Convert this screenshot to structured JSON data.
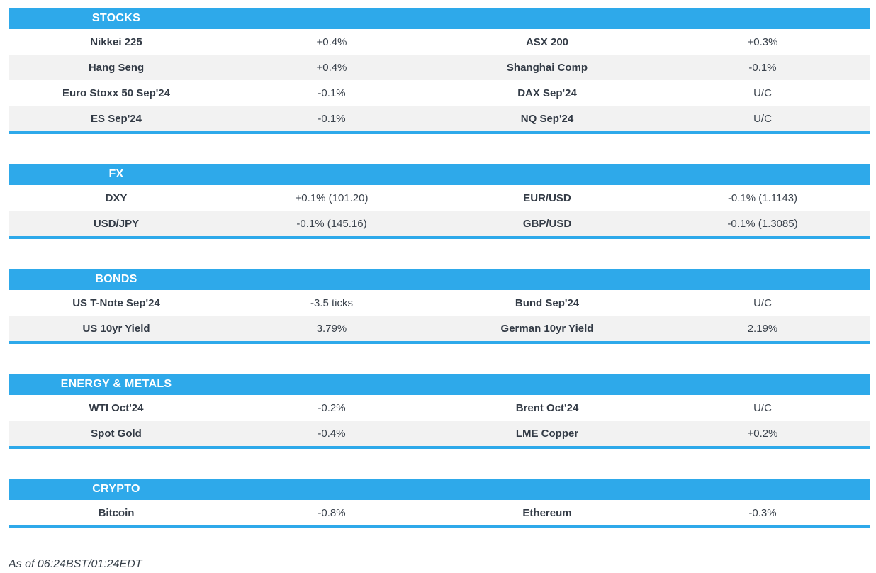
{
  "colors": {
    "accent": "#2ea9ea",
    "stripe": "#f2f2f2",
    "header_text": "#ffffff",
    "body_text": "#333b46"
  },
  "sections": [
    {
      "id": "stocks",
      "title": "STOCKS",
      "rows": [
        [
          "Nikkei 225",
          "+0.4%",
          "ASX 200",
          "+0.3%"
        ],
        [
          "Hang Seng",
          "+0.4%",
          "Shanghai Comp",
          "-0.1%"
        ],
        [
          "Euro Stoxx 50 Sep'24",
          "-0.1%",
          "DAX Sep'24",
          "U/C"
        ],
        [
          "ES Sep'24",
          "-0.1%",
          "NQ Sep'24",
          "U/C"
        ]
      ]
    },
    {
      "id": "fx",
      "title": "FX",
      "rows": [
        [
          "DXY",
          "+0.1% (101.20)",
          "EUR/USD",
          "-0.1% (1.1143)"
        ],
        [
          "USD/JPY",
          "-0.1% (145.16)",
          "GBP/USD",
          "-0.1% (1.3085)"
        ]
      ]
    },
    {
      "id": "bonds",
      "title": "BONDS",
      "rows": [
        [
          "US T-Note Sep'24",
          "-3.5 ticks",
          "Bund Sep'24",
          "U/C"
        ],
        [
          "US 10yr Yield",
          "3.79%",
          "German 10yr Yield",
          "2.19%"
        ]
      ]
    },
    {
      "id": "energy-metals",
      "title": "ENERGY & METALS",
      "rows": [
        [
          "WTI Oct'24",
          "-0.2%",
          "Brent Oct'24",
          "U/C"
        ],
        [
          "Spot Gold",
          "-0.4%",
          "LME Copper",
          "+0.2%"
        ]
      ]
    },
    {
      "id": "crypto",
      "title": "CRYPTO",
      "rows": [
        [
          "Bitcoin",
          "-0.8%",
          "Ethereum",
          "-0.3%"
        ]
      ]
    }
  ],
  "footer": {
    "as_of": "As of 06:24BST/01:24EDT"
  }
}
